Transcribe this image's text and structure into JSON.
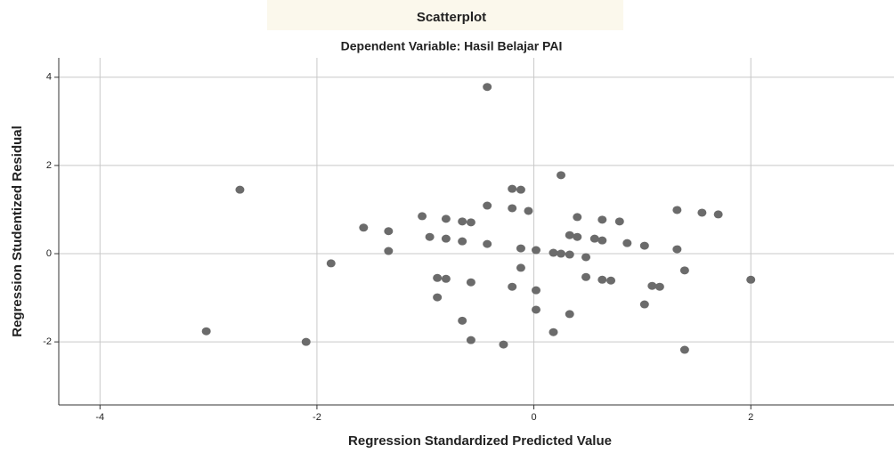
{
  "chart_data": {
    "type": "scatter",
    "title": "Scatterplot",
    "subtitle": "Dependent Variable: Hasil Belajar PAI",
    "x_label": "Regression Standardized Predicted Value",
    "y_label": "Regression Studentized Residual",
    "color": "#6b6b6b",
    "grid": true,
    "xlim": [
      -4.38,
      3.32
    ],
    "ylim": [
      -3.43,
      4.44
    ],
    "xticks": [
      -4,
      -2,
      0,
      2
    ],
    "yticks": [
      -2,
      0,
      2,
      4
    ],
    "x": [
      -0.43,
      0.25,
      -2.71,
      -0.2,
      -0.12,
      -0.43,
      -0.2,
      -0.05,
      -1.03,
      -0.81,
      -0.66,
      -0.58,
      0.4,
      0.63,
      0.79,
      1.32,
      1.55,
      1.7,
      -1.57,
      -1.34,
      -0.96,
      -0.81,
      -0.66,
      -0.43,
      0.33,
      0.4,
      0.56,
      0.63,
      0.86,
      1.02,
      1.32,
      -0.12,
      0.02,
      -1.34,
      0.18,
      0.25,
      0.33,
      0.48,
      -1.87,
      -0.12,
      1.39,
      -0.89,
      -0.81,
      -0.58,
      0.48,
      0.63,
      0.71,
      1.09,
      1.16,
      2.0,
      -0.2,
      0.02,
      -0.89,
      1.02,
      0.02,
      0.33,
      -0.66,
      -3.02,
      0.18,
      -2.1,
      -0.58,
      -0.28,
      1.39
    ],
    "values": [
      3.78,
      1.78,
      1.45,
      1.47,
      1.45,
      1.09,
      1.03,
      0.97,
      0.85,
      0.79,
      0.73,
      0.71,
      0.83,
      0.77,
      0.73,
      0.99,
      0.93,
      0.89,
      0.59,
      0.51,
      0.38,
      0.34,
      0.28,
      0.22,
      0.42,
      0.38,
      0.34,
      0.3,
      0.24,
      0.18,
      0.1,
      0.12,
      0.08,
      0.06,
      0.02,
      0.0,
      -0.02,
      -0.08,
      -0.22,
      -0.32,
      -0.38,
      -0.55,
      -0.57,
      -0.65,
      -0.53,
      -0.59,
      -0.61,
      -0.73,
      -0.75,
      -0.59,
      -0.75,
      -0.83,
      -0.99,
      -1.15,
      -1.27,
      -1.37,
      -1.52,
      -1.76,
      -1.78,
      -2.0,
      -1.96,
      -2.06,
      -2.18
    ]
  }
}
